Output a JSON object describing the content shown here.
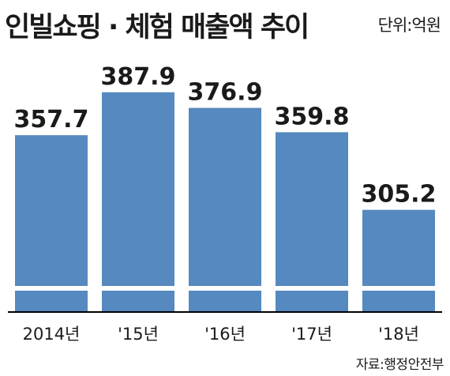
{
  "header": {
    "title": "인빌쇼핑 · 체험 매출액 추이",
    "unit": "단위:억원"
  },
  "footer": {
    "source": "자료:행정안전부"
  },
  "colors": {
    "bar": "#5589bf",
    "break_gap": "#ffffff",
    "axis": "#000000",
    "text": "#1a1a1a"
  },
  "chart_data": {
    "type": "bar",
    "title": "인빌쇼핑 · 체험 매출액 추이",
    "unit": "단위:억원",
    "categories": [
      "2014년",
      "'15년",
      "'16년",
      "'17년",
      "'18년"
    ],
    "values": [
      357.7,
      387.9,
      376.9,
      359.8,
      305.2
    ],
    "value_labels": [
      "357.7",
      "387.9",
      "376.9",
      "359.8",
      "305.2"
    ],
    "axis_break": true,
    "grid": false,
    "legend": "none"
  }
}
